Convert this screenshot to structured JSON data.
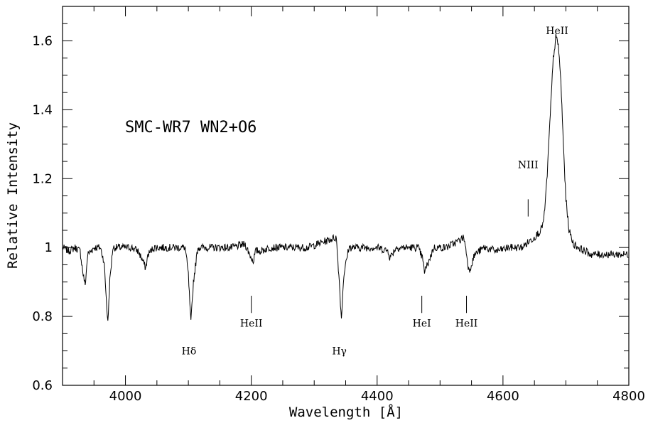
{
  "chart_data": {
    "type": "line",
    "title": "SMC-WR7 WN2+O6",
    "xlabel": "Wavelength [Å]",
    "ylabel": "Relative Intensity",
    "xlim": [
      3900,
      4800
    ],
    "ylim": [
      0.6,
      1.7
    ],
    "x_ticks": [
      {
        "value": 4000,
        "label": "4000"
      },
      {
        "value": 4200,
        "label": "4200"
      },
      {
        "value": 4400,
        "label": "4400"
      },
      {
        "value": 4600,
        "label": "4600"
      },
      {
        "value": 4800,
        "label": "4800"
      }
    ],
    "y_ticks": [
      {
        "value": 0.6,
        "label": "0.6"
      },
      {
        "value": 0.8,
        "label": "0.8"
      },
      {
        "value": 1.0,
        "label": "1"
      },
      {
        "value": 1.2,
        "label": "1.2"
      },
      {
        "value": 1.4,
        "label": "1.4"
      },
      {
        "value": 1.6,
        "label": "1.6"
      }
    ],
    "series": [
      {
        "x": [
          3900,
          3910,
          3920,
          3928,
          3933,
          3936,
          3940,
          3950,
          3960,
          3966,
          3970,
          3972,
          3975,
          3980,
          3990,
          4000,
          4010,
          4020,
          4028,
          4032,
          4036,
          4045,
          4060,
          4080,
          4095,
          4100,
          4104,
          4108,
          4115,
          4130,
          4150,
          4170,
          4190,
          4200,
          4203,
          4207,
          4215,
          4230,
          4260,
          4290,
          4320,
          4335,
          4340,
          4343,
          4347,
          4355,
          4370,
          4400,
          4418,
          4420,
          4430,
          4450,
          4465,
          4472,
          4475,
          4480,
          4490,
          4510,
          4530,
          4538,
          4543,
          4546,
          4555,
          4570,
          4590,
          4610,
          4630,
          4650,
          4660,
          4665,
          4670,
          4675,
          4680,
          4684,
          4688,
          4692,
          4696,
          4700,
          4705,
          4712,
          4720,
          4740,
          4760,
          4780,
          4800
        ],
        "y": [
          1.0,
          0.99,
          1.0,
          0.99,
          0.92,
          0.89,
          0.98,
          1.0,
          1.0,
          0.96,
          0.84,
          0.78,
          0.9,
          1.0,
          1.0,
          1.0,
          1.0,
          0.99,
          0.96,
          0.94,
          0.98,
          1.0,
          1.0,
          1.0,
          1.0,
          0.92,
          0.78,
          0.9,
          1.0,
          1.0,
          1.0,
          1.0,
          1.01,
          0.97,
          0.96,
          0.99,
          0.99,
          1.0,
          1.0,
          1.0,
          1.02,
          1.03,
          0.9,
          0.79,
          0.92,
          1.0,
          1.0,
          1.0,
          0.99,
          0.97,
          1.0,
          1.0,
          1.0,
          0.97,
          0.93,
          0.95,
          1.0,
          1.0,
          1.02,
          1.03,
          0.97,
          0.93,
          0.98,
          1.0,
          0.99,
          1.0,
          1.0,
          1.03,
          1.05,
          1.08,
          1.2,
          1.38,
          1.55,
          1.61,
          1.59,
          1.48,
          1.3,
          1.14,
          1.05,
          1.01,
          1.0,
          0.98,
          0.98,
          0.98,
          0.98
        ]
      }
    ],
    "annotations": [
      {
        "label": "HeII",
        "x": 4686,
        "y": 1.62,
        "tick": false
      },
      {
        "label": "NIII",
        "x": 4640,
        "y": 1.23,
        "tick": true,
        "tick_y": [
          1.09,
          1.14
        ]
      },
      {
        "label": "HeII",
        "x": 4200,
        "y": 0.77,
        "tick": true,
        "tick_y": [
          0.81,
          0.86
        ]
      },
      {
        "label": "Hδ",
        "x": 4101,
        "y": 0.69,
        "tick": false
      },
      {
        "label": "Hγ",
        "x": 4340,
        "y": 0.69,
        "tick": false
      },
      {
        "label": "HeI",
        "x": 4471,
        "y": 0.77,
        "tick": true,
        "tick_y": [
          0.81,
          0.86
        ]
      },
      {
        "label": "HeII",
        "x": 4542,
        "y": 0.77,
        "tick": true,
        "tick_y": [
          0.81,
          0.86
        ]
      }
    ],
    "grid": false,
    "legend": "none"
  }
}
